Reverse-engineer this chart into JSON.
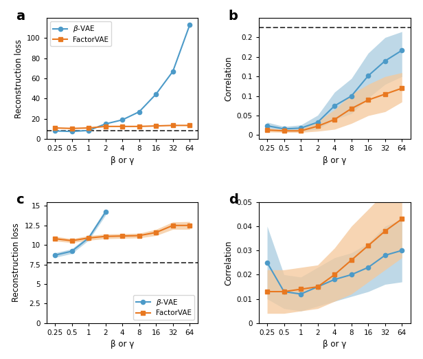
{
  "x_labels": [
    "0.25",
    "0.5",
    "1",
    "2",
    "4",
    "8",
    "16",
    "32",
    "64"
  ],
  "panel_a": {
    "beta_vae_mean": [
      8.0,
      7.5,
      8.5,
      15.0,
      19.0,
      27.0,
      44.5,
      67.0,
      113.0
    ],
    "beta_vae_lo": [
      8.0,
      7.5,
      8.5,
      15.0,
      19.0,
      27.0,
      44.5,
      67.0,
      113.0
    ],
    "beta_vae_hi": [
      8.0,
      7.5,
      8.5,
      15.0,
      19.0,
      27.0,
      44.5,
      67.0,
      113.0
    ],
    "factor_vae_mean": [
      11.0,
      10.5,
      11.0,
      12.5,
      12.5,
      12.5,
      13.0,
      13.5,
      13.5
    ],
    "factor_vae_lo": [
      11.0,
      10.5,
      11.0,
      12.5,
      12.5,
      12.5,
      13.0,
      13.5,
      13.5
    ],
    "factor_vae_hi": [
      11.0,
      10.5,
      11.0,
      12.5,
      12.5,
      12.5,
      13.0,
      13.5,
      13.5
    ],
    "hline": 8.5,
    "ylabel": "Reconstruction loss",
    "ylim": [
      0,
      120
    ],
    "yticks": [
      0,
      20,
      40,
      60,
      80,
      100
    ],
    "legend_loc": "upper left",
    "legend_bbox": null
  },
  "panel_b": {
    "beta_vae_mean": [
      0.024,
      0.016,
      0.018,
      0.033,
      0.075,
      0.1,
      0.152,
      0.19,
      0.217
    ],
    "beta_vae_lo": [
      0.015,
      0.01,
      0.01,
      0.015,
      0.04,
      0.055,
      0.095,
      0.13,
      0.15
    ],
    "beta_vae_hi": [
      0.033,
      0.022,
      0.026,
      0.051,
      0.11,
      0.145,
      0.21,
      0.25,
      0.265
    ],
    "factor_vae_mean": [
      0.013,
      0.011,
      0.011,
      0.023,
      0.04,
      0.068,
      0.09,
      0.105,
      0.12
    ],
    "factor_vae_lo": [
      0.008,
      0.007,
      0.007,
      0.01,
      0.015,
      0.03,
      0.05,
      0.06,
      0.085
    ],
    "factor_vae_hi": [
      0.018,
      0.015,
      0.015,
      0.036,
      0.065,
      0.105,
      0.13,
      0.15,
      0.16
    ],
    "hline": 0.275,
    "ylabel": "Correlation",
    "ylim": [
      -0.01,
      0.3
    ],
    "yticks": [
      0.0,
      0.05,
      0.1,
      0.15,
      0.2,
      0.25
    ],
    "legend_loc": null,
    "legend_bbox": null
  },
  "panel_c": {
    "beta_vae_mean": [
      8.7,
      9.2,
      10.9,
      14.2,
      null,
      null,
      null,
      null,
      null
    ],
    "beta_vae_lo": [
      8.4,
      8.9,
      10.6,
      13.8,
      null,
      null,
      null,
      null,
      null
    ],
    "beta_vae_hi": [
      9.0,
      9.5,
      11.2,
      14.6,
      null,
      null,
      null,
      null,
      null
    ],
    "factor_vae_mean": [
      10.8,
      10.55,
      10.9,
      11.1,
      11.15,
      11.2,
      11.6,
      12.5,
      12.5
    ],
    "factor_vae_lo": [
      10.5,
      10.3,
      10.6,
      10.8,
      10.85,
      10.9,
      11.2,
      12.0,
      12.0
    ],
    "factor_vae_hi": [
      11.1,
      10.8,
      11.2,
      11.4,
      11.45,
      11.5,
      12.0,
      12.95,
      13.0
    ],
    "hline": 7.7,
    "ylabel": "Reconstruction loss",
    "ylim": [
      0,
      15.5
    ],
    "yticks": [
      0.0,
      2.5,
      5.0,
      7.5,
      10.0,
      12.5,
      15.0
    ],
    "legend_loc": "lower right",
    "legend_bbox": null
  },
  "panel_d": {
    "beta_vae_mean": [
      0.025,
      0.013,
      0.012,
      0.015,
      0.018,
      0.02,
      0.023,
      0.028,
      0.03
    ],
    "beta_vae_lo": [
      0.01,
      0.006,
      0.005,
      0.007,
      0.009,
      0.011,
      0.013,
      0.016,
      0.017
    ],
    "beta_vae_hi": [
      0.04,
      0.02,
      0.019,
      0.023,
      0.027,
      0.029,
      0.033,
      0.04,
      0.043
    ],
    "factor_vae_mean": [
      0.013,
      0.013,
      0.014,
      0.015,
      0.02,
      0.026,
      0.032,
      0.038,
      0.043
    ],
    "factor_vae_lo": [
      0.004,
      0.004,
      0.005,
      0.006,
      0.009,
      0.012,
      0.017,
      0.022,
      0.027
    ],
    "factor_vae_hi": [
      0.022,
      0.022,
      0.023,
      0.024,
      0.031,
      0.04,
      0.047,
      0.054,
      0.059
    ],
    "hline": null,
    "ylabel": "Correlation",
    "ylim": [
      0,
      0.05
    ],
    "yticks": [
      0.0,
      0.01,
      0.02,
      0.03,
      0.04,
      0.05
    ],
    "legend_loc": null,
    "legend_bbox": null
  },
  "colors": {
    "beta_vae": "#4C9AC8",
    "factor_vae": "#E87820",
    "beta_vae_fill": "#A8CCE0",
    "factor_vae_fill": "#F5C89A"
  },
  "panel_labels": [
    "a",
    "b",
    "c",
    "d"
  ],
  "xlabel": "β or γ"
}
